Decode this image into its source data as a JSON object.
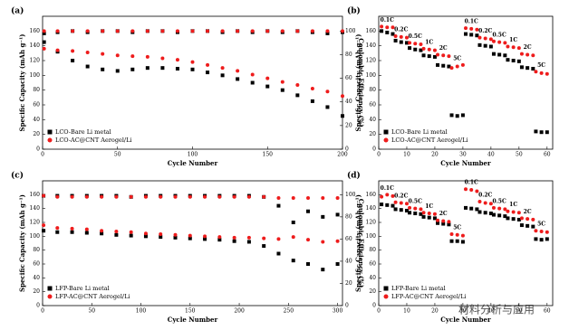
{
  "watermark": "材料分析与应用",
  "chart_data": [
    {
      "type": "scatter",
      "label": "(a)",
      "x_label": "Cycle Number",
      "y_label": "Specific Capacity (mAh g⁻¹)",
      "y2_label": "Coulombic Efficiency (%)",
      "xlim": [
        0,
        200
      ],
      "xticks": [
        0,
        50,
        100,
        150,
        200
      ],
      "ylim": [
        0,
        180
      ],
      "yticks": [
        0,
        20,
        40,
        60,
        80,
        100,
        120,
        140,
        160
      ],
      "y2lim": [
        0,
        112.5
      ],
      "y2ticks": [
        0,
        20,
        40,
        60,
        80,
        100
      ],
      "legend": "lower left",
      "x": [
        1,
        10,
        20,
        30,
        40,
        50,
        60,
        70,
        80,
        90,
        100,
        110,
        120,
        130,
        140,
        150,
        160,
        170,
        180,
        190,
        200
      ],
      "series": [
        {
          "name": "LCO-Bare Li metal",
          "color": "#000000",
          "marker": "square",
          "values": [
            145,
            132,
            120,
            112,
            108,
            106,
            108,
            110,
            110,
            109,
            108,
            104,
            100,
            95,
            90,
            85,
            80,
            73,
            65,
            57,
            45
          ]
        },
        {
          "name": "LCO-AC@CNT Aerogel/Li",
          "color": "#ee1c1c",
          "marker": "circle",
          "values": [
            136,
            134,
            133,
            131,
            129,
            127,
            126,
            125,
            123,
            121,
            118,
            114,
            110,
            106,
            101,
            96,
            91,
            87,
            82,
            78,
            72
          ]
        },
        {
          "color": "#000000",
          "marker": "square",
          "axis": "y2",
          "values": [
            98,
            99,
            100,
            99,
            100,
            100,
            99,
            100,
            100,
            99,
            100,
            100,
            99,
            100,
            99,
            100,
            99,
            100,
            99,
            98,
            99
          ]
        },
        {
          "color": "#ee1c1c",
          "marker": "circle",
          "axis": "y2",
          "values": [
            100,
            100,
            100,
            100,
            100,
            100,
            100,
            100,
            100,
            100,
            100,
            100,
            100,
            100,
            100,
            100,
            100,
            100,
            100,
            100,
            100
          ]
        }
      ]
    },
    {
      "type": "scatter",
      "label": "(b)",
      "x_label": "Cycle Number",
      "y_label": "Specific Capacity (mAh g⁻¹)",
      "xlim": [
        0,
        62
      ],
      "xticks": [
        0,
        10,
        20,
        30,
        40,
        50,
        60
      ],
      "ylim": [
        0,
        180
      ],
      "yticks": [
        0,
        20,
        40,
        60,
        80,
        100,
        120,
        140,
        160
      ],
      "legend": "lower left",
      "rates": [
        "0.1C",
        "0.2C",
        "0.5C",
        "1C",
        "2C",
        "5C",
        "0.1C",
        "0.2C",
        "0.5C",
        "1C",
        "2C",
        "5C"
      ],
      "x": [
        1,
        3,
        5,
        6,
        8,
        10,
        11,
        13,
        15,
        16,
        18,
        20,
        21,
        23,
        25,
        26,
        28,
        30,
        31,
        33,
        35,
        36,
        38,
        40,
        41,
        43,
        45,
        46,
        48,
        50,
        51,
        53,
        55,
        56,
        58,
        60
      ],
      "series": [
        {
          "name": "LCO-Bare Li metal",
          "color": "#000000",
          "marker": "square",
          "values": [
            160,
            158,
            156,
            147,
            145,
            144,
            137,
            135,
            134,
            127,
            126,
            125,
            114,
            113,
            112,
            46,
            45,
            46,
            156,
            155,
            154,
            141,
            140,
            139,
            129,
            128,
            127,
            121,
            120,
            119,
            111,
            110,
            109,
            24,
            23,
            23
          ]
        },
        {
          "name": "LCO-AC@CNT Aerogel/Li",
          "color": "#ee1c1c",
          "marker": "circle",
          "values": [
            166,
            165,
            165,
            153,
            152,
            151,
            144,
            143,
            142,
            136,
            135,
            134,
            128,
            127,
            126,
            110,
            112,
            114,
            164,
            163,
            162,
            151,
            150,
            149,
            146,
            145,
            144,
            139,
            138,
            137,
            129,
            128,
            127,
            105,
            103,
            102
          ]
        }
      ]
    },
    {
      "type": "scatter",
      "label": "(c)",
      "x_label": "Cycle Number",
      "y_label": "Specific Capacity (mAh g⁻¹)",
      "y2_label": "Coulombic Efficiency (%)",
      "xlim": [
        0,
        305
      ],
      "xticks": [
        0,
        50,
        100,
        150,
        200,
        250,
        300
      ],
      "ylim": [
        0,
        180
      ],
      "yticks": [
        0,
        20,
        40,
        60,
        80,
        100,
        120,
        140,
        160
      ],
      "y2lim": [
        0,
        112.5
      ],
      "y2ticks": [
        0,
        20,
        40,
        60,
        80,
        100
      ],
      "legend": "lower left",
      "x": [
        1,
        15,
        30,
        45,
        60,
        75,
        90,
        105,
        120,
        135,
        150,
        165,
        180,
        195,
        210,
        225,
        240,
        255,
        270,
        285,
        300
      ],
      "series": [
        {
          "name": "LFP-Bare Li metal",
          "color": "#000000",
          "marker": "square",
          "values": [
            108,
            106,
            106,
            105,
            104,
            102,
            101,
            100,
            99,
            98,
            97,
            96,
            95,
            93,
            92,
            86,
            75,
            65,
            60,
            52,
            60
          ]
        },
        {
          "name": "LFP-AC@CNT Aerogel/Li",
          "color": "#ee1c1c",
          "marker": "circle",
          "values": [
            116,
            112,
            111,
            110,
            108,
            107,
            106,
            104,
            103,
            102,
            101,
            100,
            99,
            98,
            98,
            97,
            96,
            99,
            95,
            92,
            93
          ]
        },
        {
          "color": "#000000",
          "marker": "square",
          "axis": "y2",
          "values": [
            99,
            99,
            99,
            99,
            99,
            99,
            98,
            99,
            99,
            99,
            99,
            99,
            99,
            99,
            99,
            98,
            90,
            75,
            85,
            80,
            82
          ]
        },
        {
          "color": "#ee1c1c",
          "marker": "circle",
          "axis": "y2",
          "values": [
            99,
            98,
            98,
            98,
            98,
            98,
            98,
            98,
            98,
            98,
            98,
            98,
            98,
            98,
            98,
            98,
            97,
            97,
            97,
            97,
            97
          ]
        }
      ]
    },
    {
      "type": "scatter",
      "label": "(d)",
      "x_label": "Cycle Number",
      "y_label": "Specific Capacity (mAh g⁻¹)",
      "xlim": [
        0,
        62
      ],
      "xticks": [
        0,
        10,
        20,
        30,
        40,
        50,
        60
      ],
      "ylim": [
        0,
        180
      ],
      "yticks": [
        0,
        20,
        40,
        60,
        80,
        100,
        120,
        140,
        160
      ],
      "legend": "lower left",
      "rates": [
        "0.1C",
        "0.2C",
        "0.5C",
        "1C",
        "2C",
        "5C",
        "0.1C",
        "0.2C",
        "0.5C",
        "1C",
        "2C",
        "5C"
      ],
      "x": [
        1,
        3,
        5,
        6,
        8,
        10,
        11,
        13,
        15,
        16,
        18,
        20,
        21,
        23,
        25,
        26,
        28,
        30,
        31,
        33,
        35,
        36,
        38,
        40,
        41,
        43,
        45,
        46,
        48,
        50,
        51,
        53,
        55,
        56,
        58,
        60
      ],
      "series": [
        {
          "name": "LFP-Bare Li metal",
          "color": "#000000",
          "marker": "square",
          "values": [
            146,
            145,
            144,
            139,
            138,
            137,
            134,
            133,
            132,
            128,
            127,
            126,
            119,
            118,
            117,
            93,
            93,
            92,
            141,
            140,
            139,
            135,
            134,
            133,
            131,
            130,
            129,
            126,
            125,
            124,
            116,
            115,
            114,
            96,
            95,
            96
          ]
        },
        {
          "name": "LFP-AC@CNT Aerogel/Li",
          "color": "#ee1c1c",
          "marker": "circle",
          "values": [
            157,
            160,
            158,
            149,
            148,
            147,
            141,
            140,
            139,
            134,
            133,
            132,
            123,
            122,
            121,
            103,
            102,
            101,
            168,
            167,
            165,
            150,
            148,
            147,
            141,
            140,
            139,
            136,
            135,
            134,
            126,
            125,
            124,
            108,
            107,
            106
          ]
        }
      ]
    }
  ]
}
